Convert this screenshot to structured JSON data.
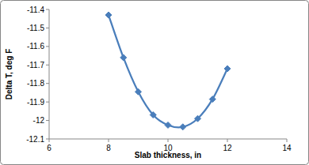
{
  "chart_data": {
    "type": "line",
    "x_label": "Slab thickness, in",
    "y_label": "Delta T, deg F",
    "x": [
      8,
      8.5,
      9,
      9.5,
      10,
      10.5,
      11,
      11.5,
      12
    ],
    "series": [
      {
        "name": "Delta T",
        "color": "#4a7ebb",
        "marker": "diamond",
        "line_style": "solid",
        "values": [
          -11.43,
          -11.66,
          -11.845,
          -11.97,
          -12.025,
          -12.035,
          -11.99,
          -11.885,
          -11.72
        ]
      }
    ],
    "xlim": [
      6,
      14
    ],
    "xticks": [
      6,
      8,
      10,
      12,
      14
    ],
    "ylim": [
      -12.1,
      -11.4
    ],
    "yticks": [
      -12.1,
      -12,
      -11.9,
      -11.8,
      -11.7,
      -11.6,
      -11.5,
      -11.4
    ],
    "grid": false
  }
}
